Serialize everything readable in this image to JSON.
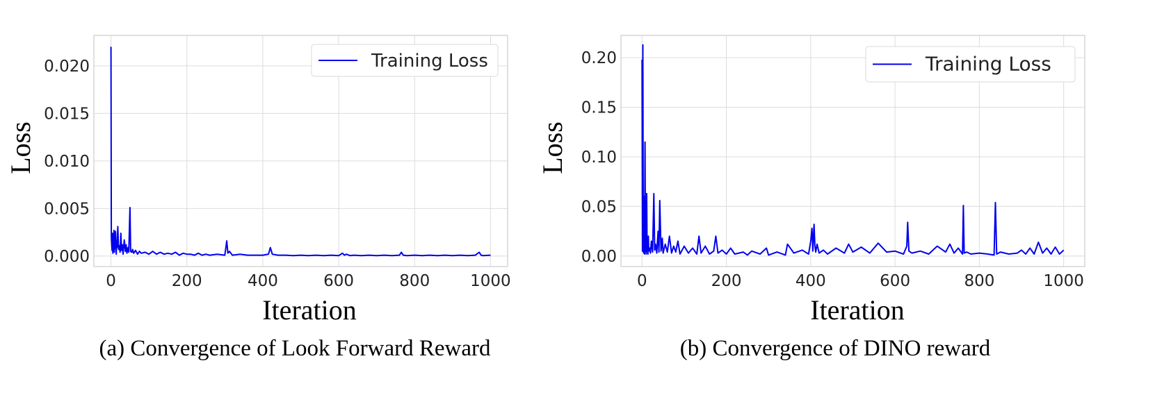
{
  "colors": {
    "series": "#0000ee"
  },
  "chart_data": [
    {
      "type": "line",
      "caption": "(a) Convergence of Look Forward Reward",
      "xlabel": "Iteration",
      "ylabel": "Loss",
      "xlim": [
        -45,
        1045
      ],
      "ylim": [
        -0.0011,
        0.0232
      ],
      "xticks": [
        0,
        200,
        400,
        600,
        800,
        1000
      ],
      "xtick_labels": [
        "0",
        "200",
        "400",
        "600",
        "800",
        "1000"
      ],
      "yticks": [
        0,
        0.005,
        0.01,
        0.015,
        0.02
      ],
      "ytick_labels": [
        "0.000",
        "0.005",
        "0.010",
        "0.015",
        "0.020"
      ],
      "grid": true,
      "legend_position": "top-right",
      "series": [
        {
          "name": "Training Loss",
          "x": [
            0,
            1,
            2,
            3,
            4,
            5,
            6,
            7,
            8,
            9,
            10,
            11,
            12,
            14,
            15,
            16,
            18,
            20,
            22,
            24,
            26,
            28,
            30,
            32,
            35,
            38,
            40,
            42,
            45,
            47,
            50,
            52,
            55,
            57,
            60,
            65,
            70,
            75,
            80,
            90,
            100,
            110,
            120,
            130,
            140,
            150,
            160,
            170,
            180,
            190,
            200,
            210,
            220,
            230,
            240,
            250,
            260,
            280,
            300,
            305,
            308,
            312,
            320,
            340,
            360,
            380,
            400,
            415,
            420,
            425,
            440,
            460,
            480,
            500,
            520,
            540,
            560,
            580,
            600,
            610,
            615,
            620,
            630,
            640,
            660,
            680,
            700,
            720,
            740,
            760,
            765,
            770,
            780,
            800,
            820,
            840,
            860,
            880,
            900,
            920,
            940,
            960,
            970,
            975,
            980,
            1000
          ],
          "values": [
            0.022,
            0.002,
            0.0012,
            0.0006,
            0.0024,
            0.0003,
            0.0018,
            0.0005,
            0.0027,
            0.0004,
            0.0015,
            0.0008,
            0.0026,
            0.0002,
            0.0016,
            0.0009,
            0.0031,
            0.0007,
            0.0011,
            0.0004,
            0.0024,
            0.0006,
            0.0012,
            0.0002,
            0.0017,
            0.0005,
            0.0012,
            0.0003,
            0.0009,
            0.0004,
            0.0051,
            0.0005,
            0.0004,
            0.0007,
            0.0003,
            0.0006,
            0.0002,
            0.0005,
            0.0003,
            0.0004,
            0.0002,
            0.0005,
            0.0002,
            0.0004,
            0.0002,
            0.0003,
            0.0002,
            0.0004,
            0.0001,
            0.0003,
            0.0002,
            0.0002,
            0.0001,
            0.0003,
            0.0001,
            0.0002,
            0.0001,
            0.0002,
            0.0001,
            0.0016,
            0.0003,
            0.0005,
            0.0001,
            0.0002,
            0.0001,
            0.0001,
            0.0001,
            0.0002,
            0.0009,
            0.0002,
            0.0001,
            0.0001,
            5e-05,
            0.0001,
            5e-05,
            0.0001,
            5e-05,
            0.0001,
            5e-05,
            0.0003,
            0.0001,
            0.0002,
            5e-05,
            0.0001,
            5e-05,
            0.0001,
            5e-05,
            0.0001,
            5e-05,
            0.0001,
            0.0004,
            0.0001,
            5e-05,
            0.0001,
            5e-05,
            0.0001,
            5e-05,
            0.0001,
            5e-05,
            0.0001,
            5e-05,
            0.0001,
            0.0004,
            0.0001,
            5e-05,
            0.0001
          ]
        }
      ]
    },
    {
      "type": "line",
      "caption": "(b) Convergence of DINO reward",
      "xlabel": "Iteration",
      "ylabel": "Loss",
      "xlim": [
        -50,
        1050
      ],
      "ylim": [
        -0.0106,
        0.2225
      ],
      "xticks": [
        0,
        200,
        400,
        600,
        800,
        1000
      ],
      "xtick_labels": [
        "0",
        "200",
        "400",
        "600",
        "800",
        "1000"
      ],
      "yticks": [
        0,
        0.05,
        0.1,
        0.15,
        0.2
      ],
      "ytick_labels": [
        "0.00",
        "0.05",
        "0.10",
        "0.15",
        "0.20"
      ],
      "grid": true,
      "legend_position": "top-right",
      "series": [
        {
          "name": "Training Loss",
          "x": [
            0,
            1,
            2,
            3,
            4,
            5,
            6,
            7,
            8,
            9,
            10,
            11,
            12,
            13,
            14,
            15,
            16,
            18,
            20,
            22,
            25,
            28,
            30,
            32,
            35,
            38,
            40,
            42,
            45,
            48,
            50,
            55,
            60,
            65,
            70,
            75,
            80,
            85,
            90,
            100,
            110,
            120,
            130,
            135,
            140,
            150,
            160,
            170,
            175,
            180,
            190,
            200,
            210,
            220,
            240,
            250,
            260,
            280,
            295,
            300,
            320,
            340,
            345,
            360,
            380,
            395,
            400,
            403,
            405,
            408,
            410,
            412,
            415,
            420,
            430,
            440,
            460,
            480,
            490,
            500,
            520,
            540,
            560,
            580,
            600,
            620,
            628,
            630,
            633,
            640,
            660,
            680,
            700,
            720,
            730,
            740,
            750,
            760,
            762,
            764,
            770,
            780,
            800,
            820,
            835,
            838,
            841,
            850,
            870,
            890,
            900,
            910,
            920,
            930,
            940,
            950,
            960,
            970,
            980,
            990,
            1000
          ],
          "values": [
            0.198,
            0.005,
            0.213,
            0.01,
            0.003,
            0.06,
            0.002,
            0.115,
            0.004,
            0.03,
            0.002,
            0.063,
            0.005,
            0.012,
            0.002,
            0.02,
            0.005,
            0.008,
            0.003,
            0.015,
            0.004,
            0.063,
            0.006,
            0.012,
            0.003,
            0.025,
            0.004,
            0.056,
            0.005,
            0.018,
            0.003,
            0.012,
            0.004,
            0.02,
            0.003,
            0.01,
            0.004,
            0.015,
            0.002,
            0.01,
            0.003,
            0.008,
            0.002,
            0.02,
            0.003,
            0.01,
            0.002,
            0.005,
            0.02,
            0.003,
            0.006,
            0.002,
            0.008,
            0.002,
            0.004,
            0.001,
            0.005,
            0.002,
            0.008,
            0.001,
            0.004,
            0.001,
            0.012,
            0.003,
            0.006,
            0.002,
            0.015,
            0.028,
            0.005,
            0.032,
            0.01,
            0.004,
            0.012,
            0.003,
            0.006,
            0.002,
            0.008,
            0.003,
            0.012,
            0.004,
            0.009,
            0.003,
            0.013,
            0.004,
            0.005,
            0.002,
            0.01,
            0.034,
            0.005,
            0.003,
            0.005,
            0.002,
            0.01,
            0.004,
            0.012,
            0.003,
            0.008,
            0.002,
            0.051,
            0.003,
            0.004,
            0.002,
            0.003,
            0.002,
            0.001,
            0.054,
            0.002,
            0.004,
            0.002,
            0.003,
            0.006,
            0.002,
            0.008,
            0.002,
            0.014,
            0.003,
            0.008,
            0.002,
            0.009,
            0.002,
            0.006
          ]
        }
      ]
    }
  ]
}
